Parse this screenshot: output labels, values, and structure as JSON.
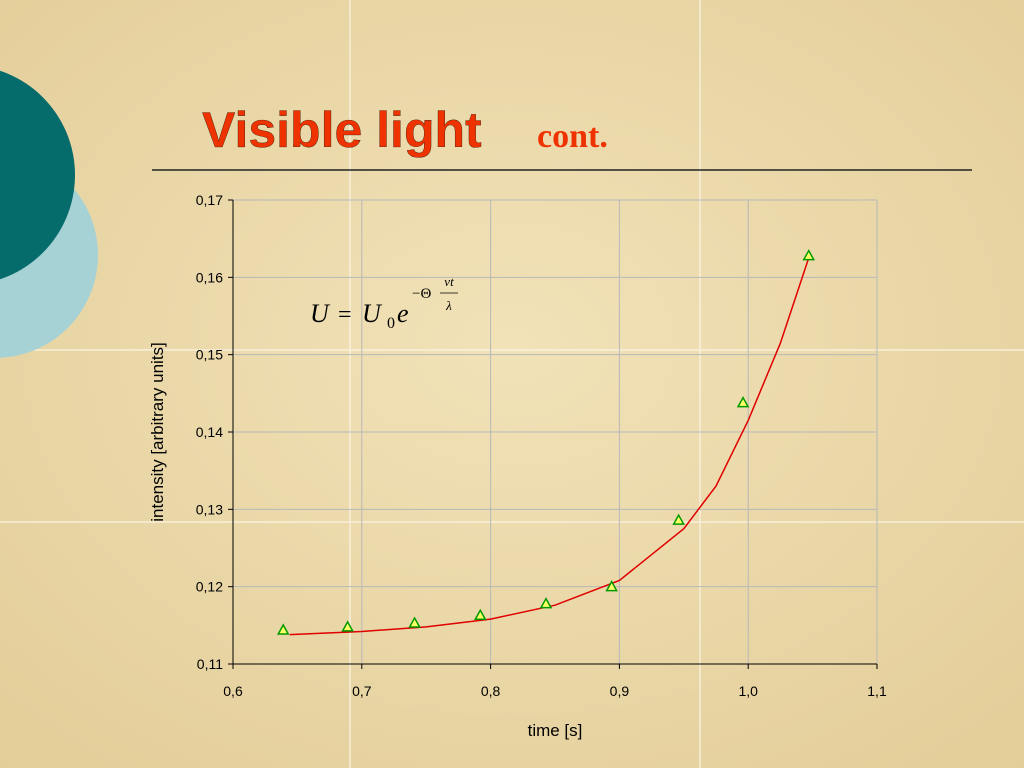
{
  "title": "Visible light",
  "title_suffix": "cont.",
  "formula": {
    "lhs": "U",
    "eq": "=",
    "rhs": "U",
    "sub": "0",
    "base": "e",
    "exp": "−Θ",
    "num": "νt",
    "den": "λ"
  },
  "chart_data": {
    "type": "scatter",
    "x_label": "time [s]",
    "y_label": "intensity [arbitrary units]",
    "xlim": [
      0.6,
      1.1
    ],
    "xticks": [
      {
        "value": 0.6,
        "label": "0,6"
      },
      {
        "value": 0.7,
        "label": "0,7"
      },
      {
        "value": 0.8,
        "label": "0,8"
      },
      {
        "value": 0.9,
        "label": "0,9"
      },
      {
        "value": 1.0,
        "label": "1,0"
      },
      {
        "value": 1.1,
        "label": "1,1"
      }
    ],
    "ylim": [
      0.11,
      0.17
    ],
    "yticks": [
      {
        "value": 0.11,
        "label": "0,11"
      },
      {
        "value": 0.12,
        "label": "0,12"
      },
      {
        "value": 0.13,
        "label": "0,13"
      },
      {
        "value": 0.14,
        "label": "0,14"
      },
      {
        "value": 0.15,
        "label": "0,15"
      },
      {
        "value": 0.16,
        "label": "0,16"
      },
      {
        "value": 0.17,
        "label": "0,17"
      }
    ],
    "grid": true,
    "series": [
      {
        "mode": "markers",
        "color": "#009900",
        "fill": "#ffff66",
        "x": [
          0.639,
          0.689,
          0.741,
          0.792,
          0.843,
          0.894,
          0.946,
          0.996,
          1.047
        ],
        "values": [
          0.1144,
          0.1148,
          0.1153,
          0.1163,
          0.1178,
          0.12,
          0.1286,
          0.1438,
          0.1628
        ]
      },
      {
        "mode": "line",
        "color": "#e00000",
        "x": [
          0.644,
          0.7,
          0.75,
          0.8,
          0.85,
          0.9,
          0.95,
          0.975,
          1.0,
          1.025,
          1.047
        ],
        "values": [
          0.1138,
          0.1142,
          0.1148,
          0.1158,
          0.1176,
          0.1208,
          0.1275,
          0.133,
          0.1415,
          0.1515,
          0.1625
        ]
      }
    ]
  }
}
